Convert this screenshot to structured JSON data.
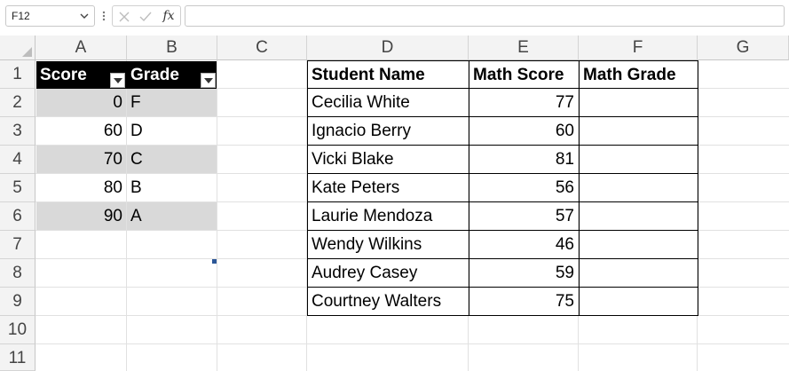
{
  "formula_bar": {
    "name_box": "F12",
    "fx_label": "fx",
    "formula_value": ""
  },
  "columns": [
    "A",
    "B",
    "C",
    "D",
    "E",
    "F",
    "G"
  ],
  "rows": [
    "1",
    "2",
    "3",
    "4",
    "5",
    "6",
    "7",
    "8",
    "9",
    "10",
    "11"
  ],
  "grade_table": {
    "headers": [
      "Score",
      "Grade"
    ],
    "rows": [
      {
        "score": "0",
        "grade": "F"
      },
      {
        "score": "60",
        "grade": "D"
      },
      {
        "score": "70",
        "grade": "C"
      },
      {
        "score": "80",
        "grade": "B"
      },
      {
        "score": "90",
        "grade": "A"
      }
    ]
  },
  "student_table": {
    "headers": [
      "Student Name",
      "Math Score",
      "Math Grade"
    ],
    "rows": [
      {
        "name": "Cecilia White",
        "score": "77",
        "grade": ""
      },
      {
        "name": "Ignacio Berry",
        "score": "60",
        "grade": ""
      },
      {
        "name": "Vicki Blake",
        "score": "81",
        "grade": ""
      },
      {
        "name": "Kate Peters",
        "score": "56",
        "grade": ""
      },
      {
        "name": "Laurie Mendoza",
        "score": "57",
        "grade": ""
      },
      {
        "name": "Wendy Wilkins",
        "score": "46",
        "grade": ""
      },
      {
        "name": "Audrey Casey",
        "score": "59",
        "grade": ""
      },
      {
        "name": "Courtney Walters",
        "score": "75",
        "grade": ""
      }
    ]
  },
  "colors": {
    "table_header_bg": "#000000",
    "band_bg": "#d9d9d9",
    "gridline": "#e1e1e1"
  }
}
